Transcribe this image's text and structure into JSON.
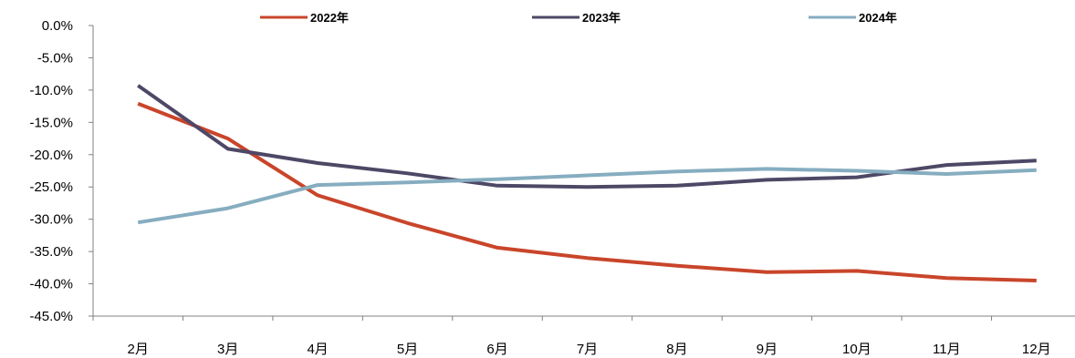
{
  "chart_data": {
    "type": "line",
    "categories": [
      "2月",
      "3月",
      "4月",
      "5月",
      "6月",
      "7月",
      "8月",
      "9月",
      "10月",
      "11月",
      "12月"
    ],
    "series": [
      {
        "name": "2022年",
        "color": "#c9452a",
        "values": [
          -12.1,
          -17.5,
          -26.3,
          -30.6,
          -34.4,
          -36.0,
          -37.2,
          -38.2,
          -38.0,
          -39.1,
          -39.5
        ]
      },
      {
        "name": "2023年",
        "color": "#4e4866",
        "values": [
          -9.3,
          -19.1,
          -21.3,
          -22.9,
          -24.8,
          -25.0,
          -24.8,
          -23.9,
          -23.5,
          -21.6,
          -20.9
        ]
      },
      {
        "name": "2024年",
        "color": "#86adc0",
        "values": [
          -30.5,
          -28.3,
          -24.7,
          -24.3,
          -23.8,
          -23.2,
          -22.6,
          -22.2,
          -22.5,
          -23.0,
          -22.4
        ]
      }
    ],
    "yticks": [
      "0.0%",
      "-5.0%",
      "-10.0%",
      "-15.0%",
      "-20.0%",
      "-25.0%",
      "-30.0%",
      "-35.0%",
      "-40.0%",
      "-45.0%"
    ],
    "ylim": [
      -45,
      0
    ],
    "ylabel": "",
    "xlabel": "",
    "title": "",
    "grid": false,
    "legend_position": "top-center"
  }
}
